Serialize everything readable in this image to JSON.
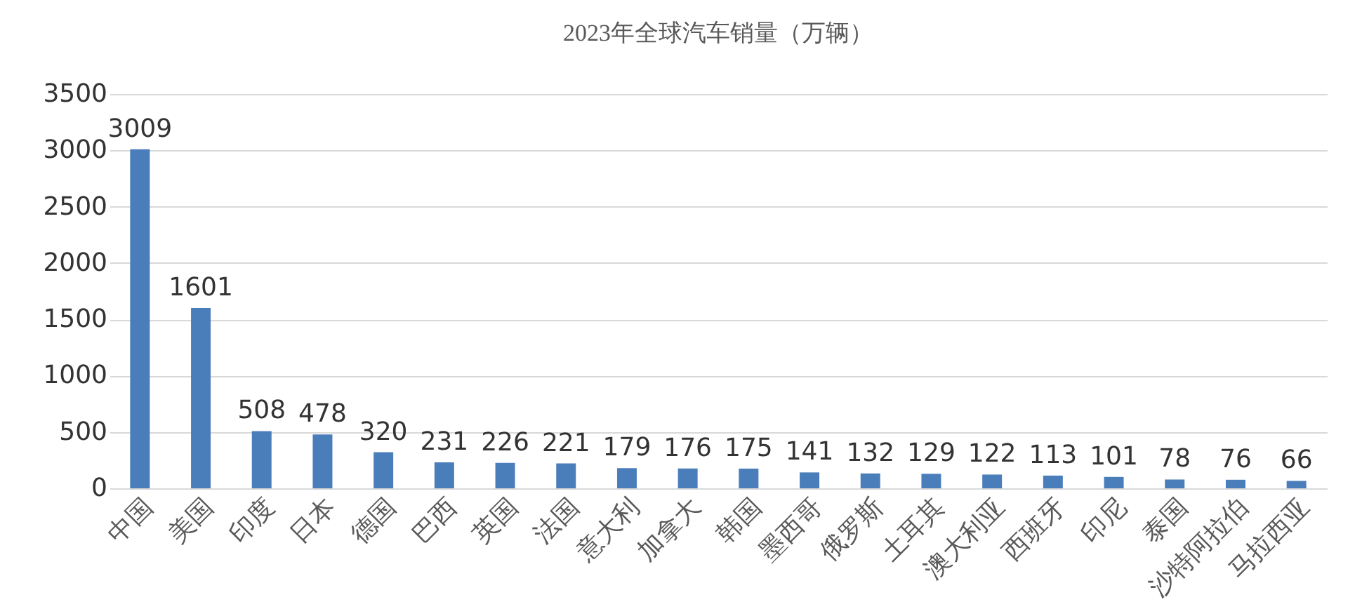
{
  "chart_data": {
    "type": "bar",
    "title": "2023年全球汽车销量（万辆）",
    "categories": [
      "中国",
      "美国",
      "印度",
      "日本",
      "德国",
      "巴西",
      "英国",
      "法国",
      "意大利",
      "加拿大",
      "韩国",
      "墨西哥",
      "俄罗斯",
      "土耳其",
      "澳大利亚",
      "西班牙",
      "印尼",
      "泰国",
      "沙特阿拉伯",
      "马拉西亚"
    ],
    "values": [
      3009,
      1601,
      508,
      478,
      320,
      231,
      226,
      221,
      179,
      176,
      175,
      141,
      132,
      129,
      122,
      113,
      101,
      78,
      76,
      66
    ],
    "color": "#4a7ebb",
    "ylim": [
      0,
      3500
    ],
    "yticks": [
      0,
      500,
      1000,
      1500,
      2000,
      2500,
      3000,
      3500
    ],
    "grid": "y",
    "data_labels": true
  }
}
